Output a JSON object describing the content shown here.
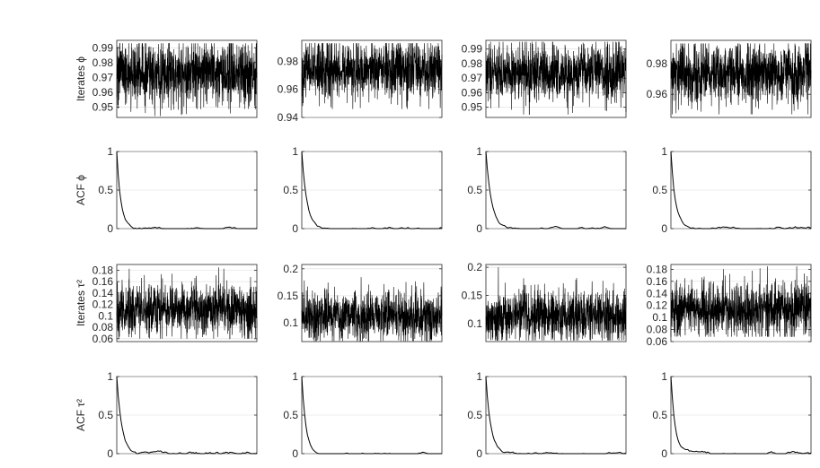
{
  "chart_data": [
    {
      "type": "line",
      "row": "iterates-phi",
      "col": 1,
      "ylabel": "Iterates ϕ",
      "ylim": [
        0.943,
        0.995
      ],
      "yticks": [
        0.95,
        0.96,
        0.97,
        0.98,
        0.99
      ],
      "ytick_labels": [
        "0.95",
        "0.96",
        "0.97",
        "0.98",
        "0.99"
      ],
      "grid": true,
      "series": [
        {
          "kind": "trace",
          "n": 1000,
          "mean": 0.973,
          "spread": 0.011,
          "min": 0.944,
          "max": 0.993
        }
      ]
    },
    {
      "type": "line",
      "row": "iterates-phi",
      "col": 2,
      "ylabel": "",
      "ylim": [
        0.94,
        0.995
      ],
      "yticks": [
        0.94,
        0.96,
        0.98
      ],
      "ytick_labels": [
        "0.94",
        "0.96",
        "0.98"
      ],
      "grid": true,
      "series": [
        {
          "kind": "trace",
          "n": 1000,
          "mean": 0.974,
          "spread": 0.0105,
          "min": 0.946,
          "max": 0.993
        }
      ]
    },
    {
      "type": "line",
      "row": "iterates-phi",
      "col": 3,
      "ylabel": "",
      "ylim": [
        0.943,
        0.996
      ],
      "yticks": [
        0.95,
        0.96,
        0.97,
        0.98,
        0.99
      ],
      "ytick_labels": [
        "0.95",
        "0.96",
        "0.97",
        "0.98",
        "0.99"
      ],
      "grid": true,
      "series": [
        {
          "kind": "trace",
          "n": 1000,
          "mean": 0.974,
          "spread": 0.0105,
          "min": 0.945,
          "max": 0.995
        }
      ]
    },
    {
      "type": "line",
      "row": "iterates-phi",
      "col": 4,
      "ylabel": "",
      "ylim": [
        0.945,
        0.995
      ],
      "yticks": [
        0.96,
        0.98
      ],
      "ytick_labels": [
        "0.96",
        "0.98"
      ],
      "grid": true,
      "series": [
        {
          "kind": "trace",
          "n": 1000,
          "mean": 0.974,
          "spread": 0.0105,
          "min": 0.947,
          "max": 0.993
        }
      ]
    },
    {
      "type": "line",
      "row": "acf-phi",
      "col": 1,
      "ylabel": "ACF ϕ",
      "ylim": [
        0,
        1
      ],
      "yticks": [
        0,
        0.5,
        1
      ],
      "ytick_labels": [
        "0",
        "0.5",
        "1"
      ],
      "grid": true,
      "series": [
        {
          "kind": "acf",
          "n": 100,
          "decay": 3,
          "noise": 0.02
        }
      ]
    },
    {
      "type": "line",
      "row": "acf-phi",
      "col": 2,
      "ylabel": "",
      "ylim": [
        0,
        1
      ],
      "yticks": [
        0,
        0.5,
        1
      ],
      "ytick_labels": [
        "0",
        "0.5",
        "1"
      ],
      "grid": true,
      "series": [
        {
          "kind": "acf",
          "n": 100,
          "decay": 3.5,
          "noise": 0.025
        }
      ]
    },
    {
      "type": "line",
      "row": "acf-phi",
      "col": 3,
      "ylabel": "",
      "ylim": [
        0,
        1
      ],
      "yticks": [
        0,
        0.5,
        1
      ],
      "ytick_labels": [
        "0",
        "0.5",
        "1"
      ],
      "grid": true,
      "series": [
        {
          "kind": "acf",
          "n": 100,
          "decay": 4,
          "noise": 0.02
        }
      ]
    },
    {
      "type": "line",
      "row": "acf-phi",
      "col": 4,
      "ylabel": "",
      "ylim": [
        0,
        1
      ],
      "yticks": [
        0,
        0.5,
        1
      ],
      "ytick_labels": [
        "0",
        "0.5",
        "1"
      ],
      "grid": true,
      "series": [
        {
          "kind": "acf",
          "n": 100,
          "decay": 3,
          "noise": 0.025
        }
      ]
    },
    {
      "type": "line",
      "row": "iterates-tau2",
      "col": 1,
      "ylabel": "Iterates τ²",
      "ylim": [
        0.055,
        0.19
      ],
      "yticks": [
        0.06,
        0.08,
        0.1,
        0.12,
        0.14,
        0.16,
        0.18
      ],
      "ytick_labels": [
        "0.06",
        "0.08",
        "0.1",
        "0.12",
        "0.14",
        "0.16",
        "0.18"
      ],
      "grid": true,
      "series": [
        {
          "kind": "trace",
          "n": 1000,
          "mean": 0.112,
          "spread": 0.024,
          "min": 0.06,
          "max": 0.185
        }
      ]
    },
    {
      "type": "line",
      "row": "iterates-tau2",
      "col": 2,
      "ylabel": "",
      "ylim": [
        0.065,
        0.208
      ],
      "yticks": [
        0.1,
        0.15,
        0.2
      ],
      "ytick_labels": [
        "0.1",
        "0.15",
        "0.2"
      ],
      "grid": true,
      "series": [
        {
          "kind": "trace",
          "n": 1000,
          "mean": 0.112,
          "spread": 0.023,
          "min": 0.066,
          "max": 0.205
        }
      ]
    },
    {
      "type": "line",
      "row": "iterates-tau2",
      "col": 3,
      "ylabel": "",
      "ylim": [
        0.068,
        0.205
      ],
      "yticks": [
        0.1,
        0.15,
        0.2
      ],
      "ytick_labels": [
        "0.1",
        "0.15",
        "0.2"
      ],
      "grid": true,
      "series": [
        {
          "kind": "trace",
          "n": 1000,
          "mean": 0.113,
          "spread": 0.023,
          "min": 0.07,
          "max": 0.2
        }
      ]
    },
    {
      "type": "line",
      "row": "iterates-tau2",
      "col": 4,
      "ylabel": "",
      "ylim": [
        0.06,
        0.188
      ],
      "yticks": [
        0.06,
        0.08,
        0.1,
        0.12,
        0.14,
        0.16,
        0.18
      ],
      "ytick_labels": [
        "0.06",
        "0.08",
        "0.1",
        "0.12",
        "0.14",
        "0.16",
        "0.18"
      ],
      "grid": true,
      "series": [
        {
          "kind": "trace",
          "n": 1000,
          "mean": 0.113,
          "spread": 0.023,
          "min": 0.068,
          "max": 0.185
        }
      ]
    },
    {
      "type": "line",
      "row": "acf-tau2",
      "col": 1,
      "ylabel": "ACF τ²",
      "ylim": [
        0,
        1
      ],
      "yticks": [
        0,
        0.5,
        1
      ],
      "ytick_labels": [
        "0",
        "0.5",
        "1"
      ],
      "grid": true,
      "series": [
        {
          "kind": "acf",
          "n": 100,
          "decay": 3.5,
          "noise": 0.03
        }
      ]
    },
    {
      "type": "line",
      "row": "acf-tau2",
      "col": 2,
      "ylabel": "",
      "ylim": [
        0,
        1
      ],
      "yticks": [
        0,
        0.5,
        1
      ],
      "ytick_labels": [
        "0",
        "0.5",
        "1"
      ],
      "grid": true,
      "series": [
        {
          "kind": "acf",
          "n": 100,
          "decay": 3,
          "noise": 0.025
        }
      ]
    },
    {
      "type": "line",
      "row": "acf-tau2",
      "col": 3,
      "ylabel": "",
      "ylim": [
        0,
        1
      ],
      "yticks": [
        0,
        0.5,
        1
      ],
      "ytick_labels": [
        "0",
        "0.5",
        "1"
      ],
      "grid": true,
      "series": [
        {
          "kind": "acf",
          "n": 100,
          "decay": 3.5,
          "noise": 0.02
        }
      ]
    },
    {
      "type": "line",
      "row": "acf-tau2",
      "col": 4,
      "ylabel": "",
      "ylim": [
        0,
        1
      ],
      "yticks": [
        0,
        0.5,
        1
      ],
      "ytick_labels": [
        "0",
        "0.5",
        "1"
      ],
      "grid": true,
      "series": [
        {
          "kind": "acf",
          "n": 100,
          "decay": 3,
          "noise": 0.025
        }
      ]
    }
  ]
}
